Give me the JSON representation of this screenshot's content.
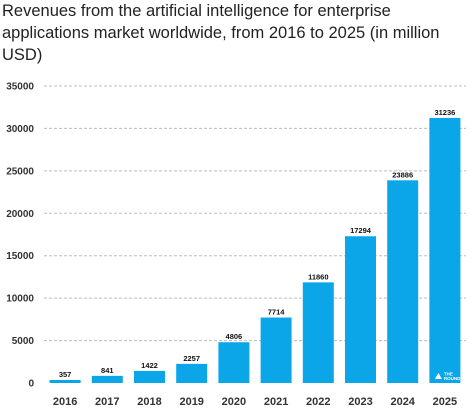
{
  "chart_data": {
    "type": "bar",
    "title": "Revenues from the artificial intelligence for enterprise applications market worldwide, from 2016 to 2025 (in million USD)",
    "categories": [
      "2016",
      "2017",
      "2018",
      "2019",
      "2020",
      "2021",
      "2022",
      "2023",
      "2024",
      "2025"
    ],
    "values": [
      357,
      841,
      1422,
      2257,
      4806,
      7714,
      11860,
      17294,
      23886,
      31236
    ],
    "ylim": [
      0,
      35000
    ],
    "yticks": [
      0,
      5000,
      10000,
      15000,
      20000,
      25000,
      30000,
      35000
    ],
    "grid": true,
    "bar_color": "#0aa6e8",
    "grid_color": "#bdbdbd"
  },
  "watermark": {
    "line1": "THE",
    "line2": "ROUND"
  }
}
